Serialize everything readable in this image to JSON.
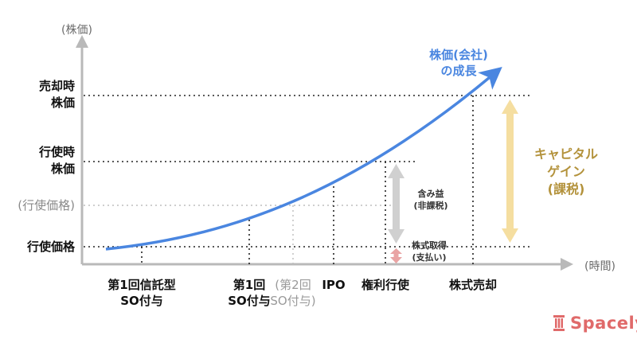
{
  "axes": {
    "y_name": "(株価)",
    "x_name": "(時間)"
  },
  "y_labels": {
    "sale_price": [
      "売却時",
      "株価"
    ],
    "exercise_price_at": [
      "行使時",
      "株価"
    ],
    "exercise_price_alt": "(行使価格)",
    "exercise_price": "行使価格"
  },
  "x_labels": {
    "first_trust": [
      "第1回信託型",
      "SO付与"
    ],
    "first": [
      "第1回",
      "SO付与"
    ],
    "second": [
      "(第2回",
      "SO付与)"
    ],
    "ipo": "IPO",
    "exercise": "権利行使",
    "sale": "株式売却"
  },
  "curve_label": [
    "株価(会社)",
    "の成長"
  ],
  "capital_gain": [
    "キャピタル",
    "ゲイン",
    "(課税)"
  ],
  "unrealized_gain": [
    "含み益",
    "(非課税)"
  ],
  "acquisition": [
    "株式取得",
    "(支払い)"
  ],
  "brand": {
    "name": "Spacely"
  },
  "colors": {
    "curve": "#4a86e0",
    "axis": "#b9b9b9",
    "capital_gain_arrow": "#f5dea0",
    "unrealized_arrow": "#d0d0d0",
    "acquisition_arrow": "#e9a3a3",
    "brand": "#e06a6a"
  }
}
